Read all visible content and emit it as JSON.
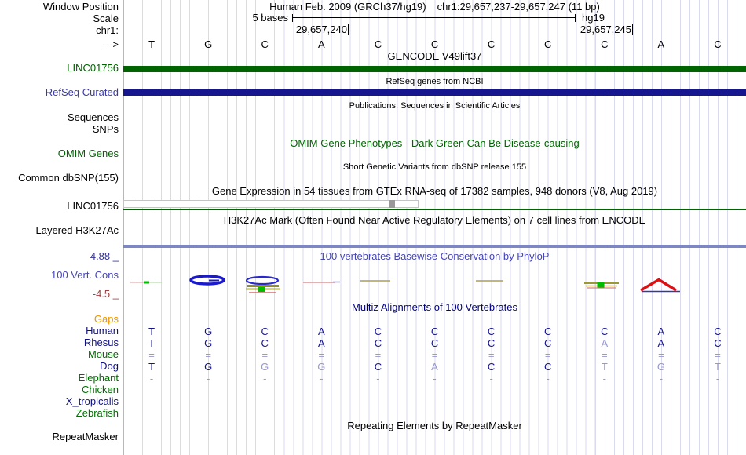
{
  "colors": {
    "grid_line": "#d9d9f0",
    "guide_pink": "#f0a0a0",
    "track_green": "#006400",
    "track_navy": "#16168e",
    "label_blue": "#3939ae",
    "cons_blue": "#4646b4",
    "cons_max_navy": "#30309a",
    "cons_min_red": "#9b4242",
    "multiz_navy": "#000080",
    "species_navy": "#101080",
    "species_green": "#007000",
    "gaps_orange": "#ee9500",
    "base_dark": "#14148a",
    "base_light": "#9898cc",
    "h3k27ac_blue": "#7d87c6",
    "gtex_gray": "#999999"
  },
  "header": {
    "window_position_label": "Window Position",
    "assembly": "Human Feb. 2009 (GRCh37/hg19)",
    "position": "chr1:29,657,237-29,657,247 (11 bp)",
    "scale_label": "Scale",
    "scale_value": "5 bases",
    "scale_genome": "hg19",
    "chrom_label": "chr1:",
    "coord_left": "29,657,240",
    "coord_right": "29,657,245",
    "strand_arrow": "--->",
    "bases": [
      "T",
      "G",
      "C",
      "A",
      "C",
      "C",
      "C",
      "C",
      "C",
      "A",
      "C"
    ]
  },
  "gencode": {
    "center": "GENCODE V49lift37",
    "label": "LINC01756"
  },
  "refseq": {
    "center": "RefSeq genes from NCBI",
    "label": "RefSeq Curated"
  },
  "publications": {
    "center": "Publications: Sequences in Scientific Articles",
    "label_sequences": "Sequences",
    "label_snps": "SNPs"
  },
  "omim": {
    "center": "OMIM Gene Phenotypes - Dark Green Can Be Disease-causing",
    "label": "OMIM Genes"
  },
  "dbsnp": {
    "center": "Short Genetic Variants from dbSNP release 155",
    "label": "Common dbSNP(155)"
  },
  "gtex": {
    "center": "Gene Expression in 54 tissues from GTEx RNA-seq of 17382 samples, 948 donors (V8, Aug 2019)",
    "label": "LINC01756"
  },
  "h3k27ac": {
    "center": "H3K27Ac Mark (Often Found Near Active Regulatory Elements) on 7 cell lines from ENCODE",
    "label": "Layered H3K27Ac"
  },
  "conservation": {
    "center": "100 vertebrates Basewise Conservation by PhyloP",
    "label": "100 Vert. Cons",
    "max": "4.88 _",
    "min": "-4.5 _"
  },
  "multiz": {
    "title": "Multiz Alignments of 100 Vertebrates",
    "rows": [
      {
        "label": "Gaps",
        "color": "orange",
        "cells": []
      },
      {
        "label": "Human",
        "color": "navy",
        "cells": [
          {
            "v": "T",
            "t": "d"
          },
          {
            "v": "G",
            "t": "d"
          },
          {
            "v": "C",
            "t": "d"
          },
          {
            "v": "A",
            "t": "d"
          },
          {
            "v": "C",
            "t": "d"
          },
          {
            "v": "C",
            "t": "d"
          },
          {
            "v": "C",
            "t": "d"
          },
          {
            "v": "C",
            "t": "d"
          },
          {
            "v": "C",
            "t": "d"
          },
          {
            "v": "A",
            "t": "d"
          },
          {
            "v": "C",
            "t": "d"
          }
        ]
      },
      {
        "label": "Rhesus",
        "color": "navy",
        "cells": [
          {
            "v": "T",
            "t": "d"
          },
          {
            "v": "G",
            "t": "d"
          },
          {
            "v": "C",
            "t": "d"
          },
          {
            "v": "A",
            "t": "d"
          },
          {
            "v": "C",
            "t": "d"
          },
          {
            "v": "C",
            "t": "d"
          },
          {
            "v": "C",
            "t": "d"
          },
          {
            "v": "C",
            "t": "d"
          },
          {
            "v": "A",
            "t": "l"
          },
          {
            "v": "A",
            "t": "d"
          },
          {
            "v": "C",
            "t": "d"
          }
        ]
      },
      {
        "label": "Mouse",
        "color": "green",
        "cells": [
          {
            "v": "=",
            "t": "l"
          },
          {
            "v": "=",
            "t": "l"
          },
          {
            "v": "=",
            "t": "l"
          },
          {
            "v": "=",
            "t": "l"
          },
          {
            "v": "=",
            "t": "l"
          },
          {
            "v": "=",
            "t": "l"
          },
          {
            "v": "=",
            "t": "l"
          },
          {
            "v": "=",
            "t": "l"
          },
          {
            "v": "=",
            "t": "l"
          },
          {
            "v": "=",
            "t": "l"
          },
          {
            "v": "=",
            "t": "l"
          }
        ]
      },
      {
        "label": "Dog",
        "color": "navy",
        "cells": [
          {
            "v": "T",
            "t": "d"
          },
          {
            "v": "G",
            "t": "d"
          },
          {
            "v": "G",
            "t": "l"
          },
          {
            "v": "G",
            "t": "l"
          },
          {
            "v": "C",
            "t": "d"
          },
          {
            "v": "A",
            "t": "l"
          },
          {
            "v": "C",
            "t": "d"
          },
          {
            "v": "C",
            "t": "d"
          },
          {
            "v": "T",
            "t": "l"
          },
          {
            "v": "G",
            "t": "l"
          },
          {
            "v": "T",
            "t": "l"
          }
        ]
      },
      {
        "label": "Elephant",
        "color": "green",
        "cells": [
          {
            "v": "-",
            "t": "l"
          },
          {
            "v": "-",
            "t": "l"
          },
          {
            "v": "-",
            "t": "l"
          },
          {
            "v": "-",
            "t": "l"
          },
          {
            "v": "-",
            "t": "l"
          },
          {
            "v": "-",
            "t": "l"
          },
          {
            "v": "-",
            "t": "l"
          },
          {
            "v": "-",
            "t": "l"
          },
          {
            "v": "-",
            "t": "l"
          },
          {
            "v": "-",
            "t": "l"
          },
          {
            "v": "-",
            "t": "l"
          }
        ]
      },
      {
        "label": "Chicken",
        "color": "green",
        "cells": []
      },
      {
        "label": "X_tropicalis",
        "color": "navy",
        "cells": []
      },
      {
        "label": "Zebrafish",
        "color": "green",
        "cells": []
      }
    ]
  },
  "repeatmasker": {
    "center": "Repeating Elements by RepeatMasker",
    "label": "RepeatMasker"
  }
}
